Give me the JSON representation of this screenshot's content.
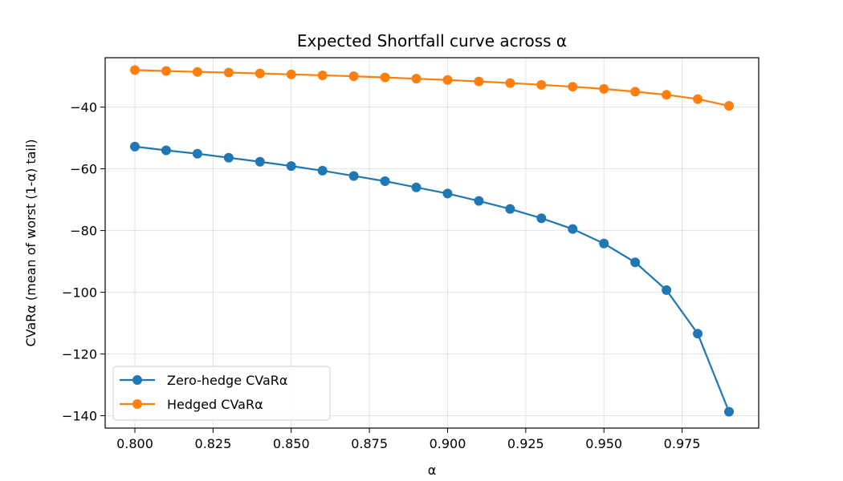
{
  "chart_data": {
    "type": "line",
    "title": "Expected Shortfall curve across α",
    "xlabel": "α",
    "ylabel": "CVaRα (mean of worst (1-α) tail)",
    "xlim": [
      0.7905,
      0.9995
    ],
    "ylim": [
      -144,
      -24
    ],
    "x_ticks": [
      "0.800",
      "0.825",
      "0.850",
      "0.875",
      "0.900",
      "0.925",
      "0.950",
      "0.975"
    ],
    "y_ticks": [
      "−40",
      "−60",
      "−80",
      "−100",
      "−120",
      "−140"
    ],
    "x_tick_values": [
      0.8,
      0.825,
      0.85,
      0.875,
      0.9,
      0.925,
      0.95,
      0.975
    ],
    "y_tick_values": [
      -40,
      -60,
      -80,
      -100,
      -120,
      -140
    ],
    "grid": true,
    "legend_position": "bottom-left",
    "x": [
      0.8,
      0.81,
      0.82,
      0.83,
      0.84,
      0.85,
      0.86,
      0.87,
      0.88,
      0.89,
      0.9,
      0.91,
      0.92,
      0.93,
      0.94,
      0.95,
      0.96,
      0.97,
      0.98,
      0.99
    ],
    "series": [
      {
        "name": "Zero-hedge CVaRα",
        "color": "#1f77b4",
        "values": [
          -52.8,
          -54.0,
          -55.1,
          -56.4,
          -57.7,
          -59.1,
          -60.6,
          -62.3,
          -64.0,
          -66.0,
          -68.0,
          -70.4,
          -73.0,
          -76.0,
          -79.5,
          -84.2,
          -90.3,
          -99.3,
          -113.4,
          -138.7
        ]
      },
      {
        "name": "Hedged CVaRα",
        "color": "#ff7f0e",
        "values": [
          -28.0,
          -28.3,
          -28.6,
          -28.8,
          -29.1,
          -29.4,
          -29.7,
          -30.0,
          -30.4,
          -30.8,
          -31.2,
          -31.7,
          -32.2,
          -32.8,
          -33.4,
          -34.1,
          -35.0,
          -36.0,
          -37.4,
          -39.6
        ]
      }
    ]
  }
}
